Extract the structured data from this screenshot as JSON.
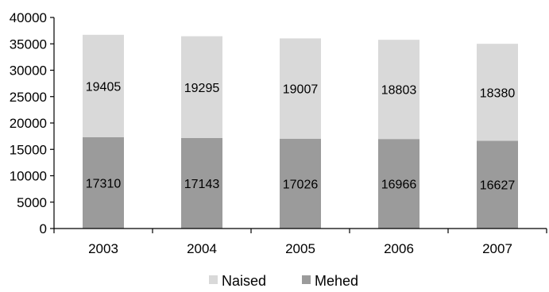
{
  "chart_data": {
    "type": "bar",
    "stacked": true,
    "categories": [
      "2003",
      "2004",
      "2005",
      "2006",
      "2007"
    ],
    "series": [
      {
        "name": "Mehed",
        "values": [
          17310,
          17143,
          17026,
          16966,
          16627
        ],
        "color": "#9b9b9b"
      },
      {
        "name": "Naised",
        "values": [
          19405,
          19295,
          19007,
          18803,
          18380
        ],
        "color": "#d9d9d9"
      }
    ],
    "ylim": [
      0,
      40000
    ],
    "yticks": [
      "0",
      "5000",
      "10000",
      "15000",
      "20000",
      "25000",
      "30000",
      "35000",
      "40000"
    ],
    "grid": false,
    "legend_position": "bottom",
    "legend_order": [
      "Naised",
      "Mehed"
    ],
    "axis_color": "#000000"
  }
}
